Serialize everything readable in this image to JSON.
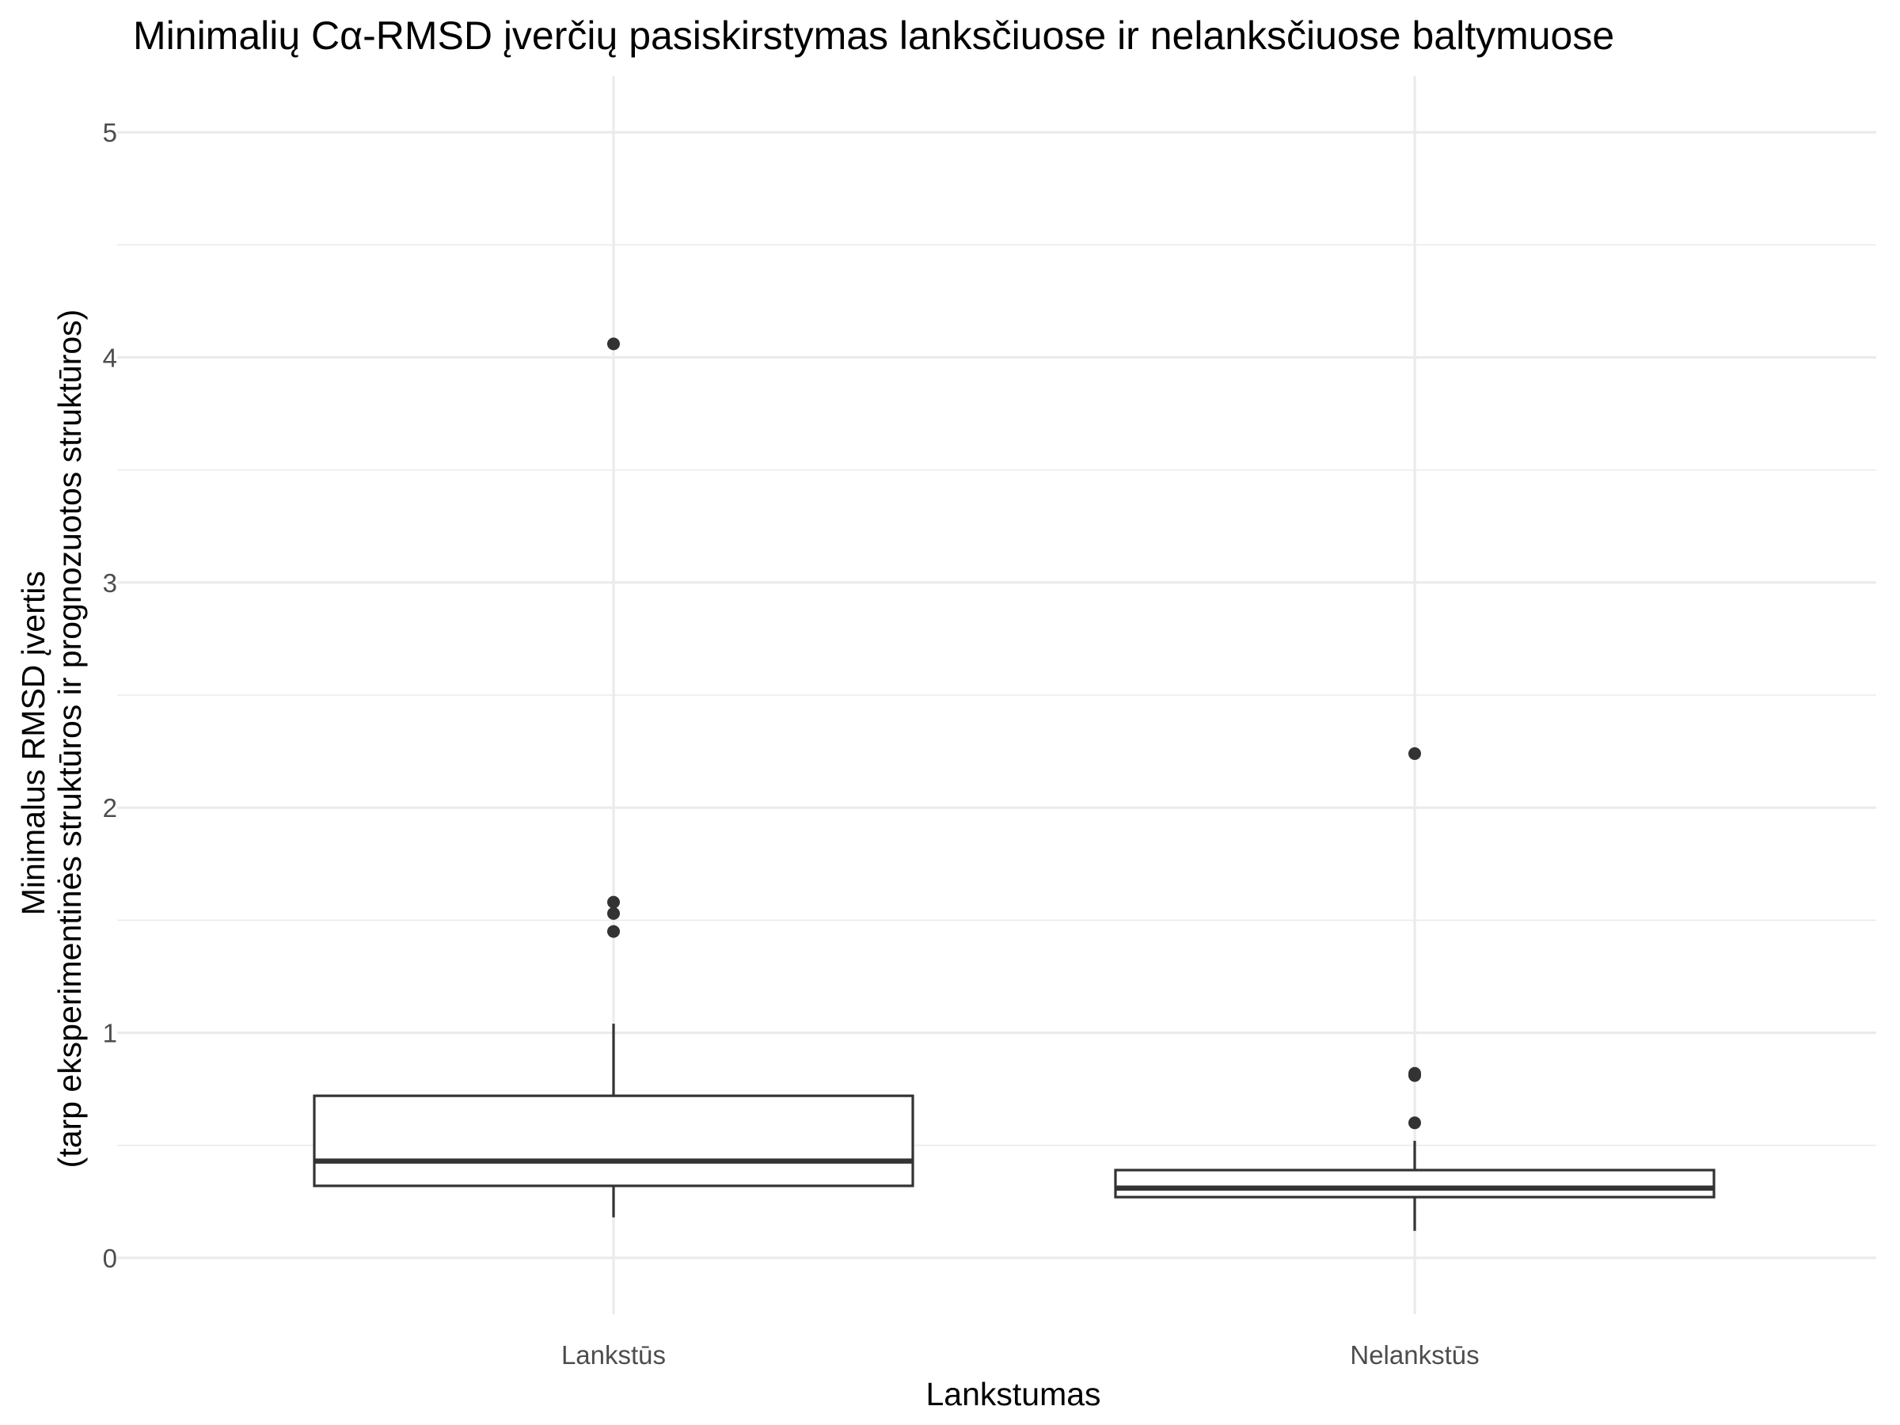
{
  "chart_data": {
    "type": "boxplot",
    "title": "Minimalių Cα-RMSD įverčių pasiskirstymas lanksčiuose ir nelanksčiuose baltymuose",
    "xlabel": "Lankstumas",
    "ylabel_lines": [
      "Minimalus RMSD įvertis",
      "(tarp eksperimentinės struktūros ir prognozuotos struktūros)"
    ],
    "categories": [
      "Lankstūs",
      "Nelankstūs"
    ],
    "ylim": [
      -0.25,
      5.25
    ],
    "yticks": [
      0,
      1,
      2,
      3,
      4,
      5
    ],
    "grid": true,
    "legend": "none",
    "colors": {
      "box_stroke": "#333333",
      "box_fill": "#ffffff",
      "grid": "#ebebeb",
      "tick_text": "#4d4d4d"
    },
    "boxes": [
      {
        "category": "Lankstūs",
        "lower_whisker": 0.18,
        "q1": 0.32,
        "median": 0.43,
        "q3": 0.72,
        "upper_whisker": 1.04,
        "outliers": [
          1.45,
          1.53,
          1.58,
          4.06
        ]
      },
      {
        "category": "Nelankstūs",
        "lower_whisker": 0.12,
        "q1": 0.27,
        "median": 0.31,
        "q3": 0.39,
        "upper_whisker": 0.52,
        "outliers": [
          0.6,
          0.81,
          0.82,
          2.24
        ]
      }
    ]
  }
}
